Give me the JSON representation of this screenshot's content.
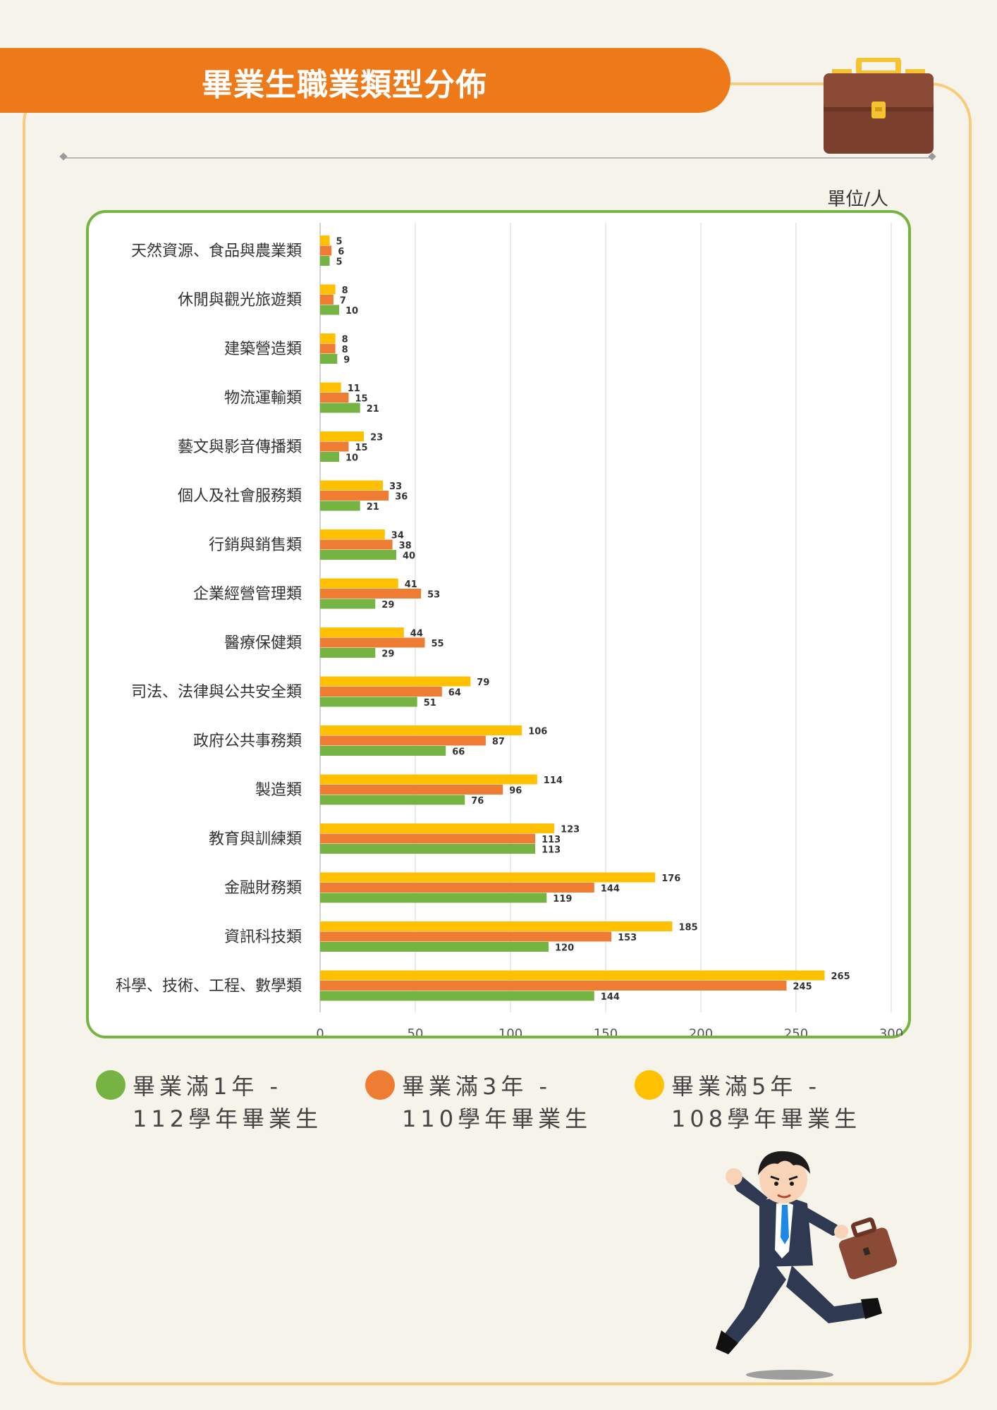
{
  "header": {
    "title": "畢業生職業類型分佈",
    "unit": "單位/人"
  },
  "colors": {
    "series1": "#75b343",
    "series3": "#ee7d33",
    "series5": "#fec000",
    "banner": "#ee7918",
    "frame": "#f7cd7d",
    "chart_border": "#75b343"
  },
  "chart_data": {
    "type": "bar",
    "orientation": "horizontal",
    "categories": [
      "天然資源、食品與農業類",
      "休閒與觀光旅遊類",
      "建築營造類",
      "物流運輸類",
      "藝文與影音傳播類",
      "個人及社會服務類",
      "行銷與銷售類",
      "企業經營管理類",
      "醫療保健類",
      "司法、法律與公共安全類",
      "政府公共事務類",
      "製造類",
      "教育與訓練類",
      "金融財務類",
      "資訊科技類",
      "科學、技術、工程、數學類"
    ],
    "series": [
      {
        "name": "畢業滿5年 - 108學年畢業生",
        "color": "#fec000",
        "values": [
          5,
          8,
          8,
          11,
          23,
          33,
          34,
          41,
          44,
          79,
          106,
          114,
          123,
          176,
          185,
          265
        ]
      },
      {
        "name": "畢業滿3年 - 110學年畢業生",
        "color": "#ee7d33",
        "values": [
          6,
          7,
          8,
          15,
          15,
          36,
          38,
          53,
          55,
          64,
          87,
          96,
          113,
          144,
          153,
          245
        ]
      },
      {
        "name": "畢業滿1年 - 112學年畢業生",
        "color": "#75b343",
        "values": [
          5,
          10,
          9,
          21,
          10,
          21,
          40,
          29,
          29,
          51,
          66,
          76,
          113,
          119,
          120,
          144
        ]
      }
    ],
    "xlim": [
      0,
      300
    ],
    "xticks": [
      "0",
      "50",
      "100",
      "150",
      "200",
      "250",
      "300"
    ],
    "grid": "vertical",
    "legend_position": "bottom"
  },
  "legend": [
    {
      "line1": "畢業滿1年 -",
      "line2": "112學年畢業生",
      "color": "#75b343"
    },
    {
      "line1": "畢業滿3年 -",
      "line2": "110學年畢業生",
      "color": "#ee7d33"
    },
    {
      "line1": "畢業滿5年 -",
      "line2": "108學年畢業生",
      "color": "#fec000"
    }
  ],
  "icons": {
    "briefcase": "briefcase-icon",
    "person": "running-businessman-illustration"
  }
}
